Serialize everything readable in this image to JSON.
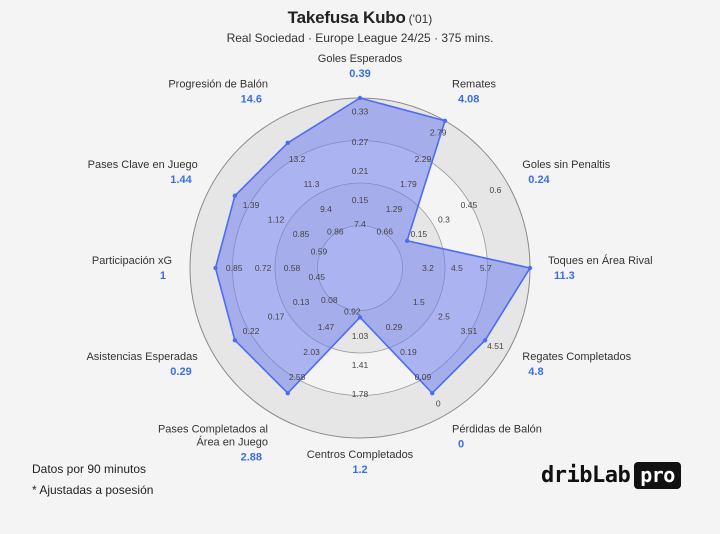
{
  "header": {
    "player": "Takefusa Kubo",
    "year": "('01)",
    "subtitle": "Real Sociedad · Europe League 24/25 · 375 mins."
  },
  "footer": {
    "note1": "Datos por 90 minutos",
    "note2": "* Ajustadas a posesión"
  },
  "logo": {
    "word": "dribLab",
    "badge": "pro"
  },
  "colors": {
    "fill": "#6f80ec",
    "stroke": "#4d6cf2",
    "value_text": "#3b6fe0",
    "outer_band": "#e6e6e6",
    "inner_band": "#f4f4f4"
  },
  "chart_data": {
    "type": "radar",
    "axes": [
      {
        "label": "Goles Esperados",
        "value_label": "0.39",
        "value": 0.39,
        "ticks": [
          "0.15",
          "0.21",
          "0.27",
          "0.33"
        ],
        "max": 0.39,
        "fraction": 1.0
      },
      {
        "label": "Remates",
        "value_label": "4.08",
        "value": 4.08,
        "ticks": [
          "1.29",
          "1.79",
          "2.29",
          "2.79"
        ],
        "max": 3.29,
        "fraction": 1.0
      },
      {
        "label": "Goles sin Penaltis",
        "value_label": "0.24",
        "value": 0.24,
        "ticks": [
          "0.15",
          "0.3",
          "0.45",
          "0.6"
        ],
        "max": 0.75,
        "fraction": 0.32
      },
      {
        "label": "Toques en Área Rival",
        "value_label": "11.3",
        "value": 11.3,
        "ticks": [
          "3.2",
          "4.5",
          "5.7",
          ""
        ],
        "max": 8.2,
        "fraction": 1.0
      },
      {
        "label": "Regates Completados",
        "value_label": "4.8",
        "value": 4.8,
        "ticks": [
          "1.5",
          "2.5",
          "3.51",
          "4.51"
        ],
        "max": 5.51,
        "fraction": 0.85
      },
      {
        "label": "Pérdidas de Balón",
        "value_label": "0",
        "value": 0,
        "ticks": [
          "0.29",
          "0.19",
          "0.09",
          "0"
        ],
        "max": 0,
        "fraction": 0.85
      },
      {
        "label": "Centros Completados",
        "value_label": "1.2",
        "value": 1.2,
        "ticks": [
          "1.03",
          "1.41",
          "1.78",
          ""
        ],
        "max": 2.16,
        "fraction": 0.29
      },
      {
        "label": "Pases Completados al\nÁrea en Juego",
        "value_label": "2.88",
        "value": 2.88,
        "ticks": [
          "1.47",
          "2.03",
          "2.58",
          ""
        ],
        "max": 3.14,
        "fraction": 0.85
      },
      {
        "label": "Asistencias Esperadas",
        "value_label": "0.29",
        "value": 0.29,
        "ticks": [
          "0.13",
          "0.17",
          "0.22",
          ""
        ],
        "max": 0.29,
        "fraction": 0.85
      },
      {
        "label": "Participación xG",
        "value_label": "1",
        "value": 1,
        "ticks": [
          "0.58",
          "0.72",
          "0.85",
          ""
        ],
        "max": 1.0,
        "fraction": 0.85
      },
      {
        "label": "Pases Clave en Juego",
        "value_label": "1.44",
        "value": 1.44,
        "ticks": [
          "0.85",
          "1.12",
          "1.39",
          ""
        ],
        "max": 1.66,
        "fraction": 0.85
      },
      {
        "label": "Progresión de Balón",
        "value_label": "14.6",
        "value": 14.6,
        "ticks": [
          "9.4",
          "11.3",
          "13.2",
          ""
        ],
        "max": 15.1,
        "fraction": 0.85
      }
    ],
    "inner_ticks": [
      "0.92",
      "0.08",
      "0.45",
      "0.59",
      "0.86",
      "7.4",
      "0.66"
    ]
  }
}
